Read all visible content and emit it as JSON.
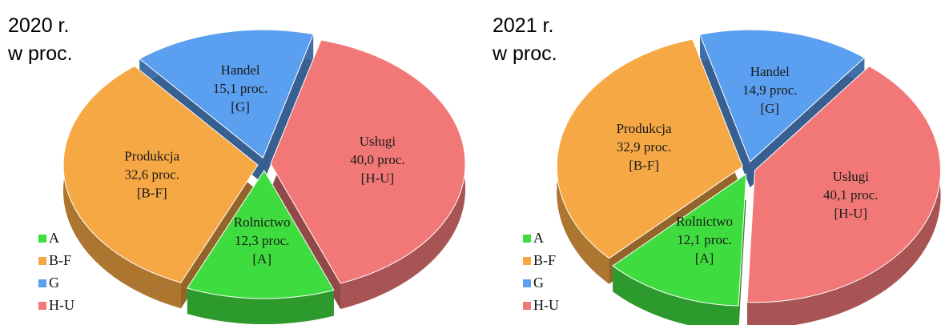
{
  "chart_data": [
    {
      "type": "pie",
      "title": "2020 r.",
      "subtitle": "w proc.",
      "categories": [
        "A",
        "B-F",
        "G",
        "H-U"
      ],
      "sector_names": [
        "Rolnictwo",
        "Produkcja",
        "Handel",
        "Usługi"
      ],
      "sector_codes": [
        "[A]",
        "[B-F]",
        "[G]",
        "[H-U]"
      ],
      "values": [
        12.3,
        32.6,
        15.1,
        40.0
      ],
      "value_labels": [
        "12,3 proc.",
        "32,6 proc.",
        "15,1 proc.",
        "40,0 proc."
      ],
      "colors": [
        "#3fdc3f",
        "#f6a845",
        "#5b9ff0",
        "#f27878"
      ],
      "legend": "lower left"
    },
    {
      "type": "pie",
      "title": "2021 r.",
      "subtitle": "w proc.",
      "categories": [
        "A",
        "B-F",
        "G",
        "H-U"
      ],
      "sector_names": [
        "Rolnictwo",
        "Produkcja",
        "Handel",
        "Usługi"
      ],
      "sector_codes": [
        "[A]",
        "[B-F]",
        "[G]",
        "[H-U]"
      ],
      "values": [
        12.1,
        32.9,
        14.9,
        40.1
      ],
      "value_labels": [
        "12,1 proc.",
        "32,9 proc.",
        "14,9 proc.",
        "40,1 proc."
      ],
      "colors": [
        "#3fdc3f",
        "#f6a845",
        "#5b9ff0",
        "#f27878"
      ],
      "legend": "lower left"
    }
  ]
}
